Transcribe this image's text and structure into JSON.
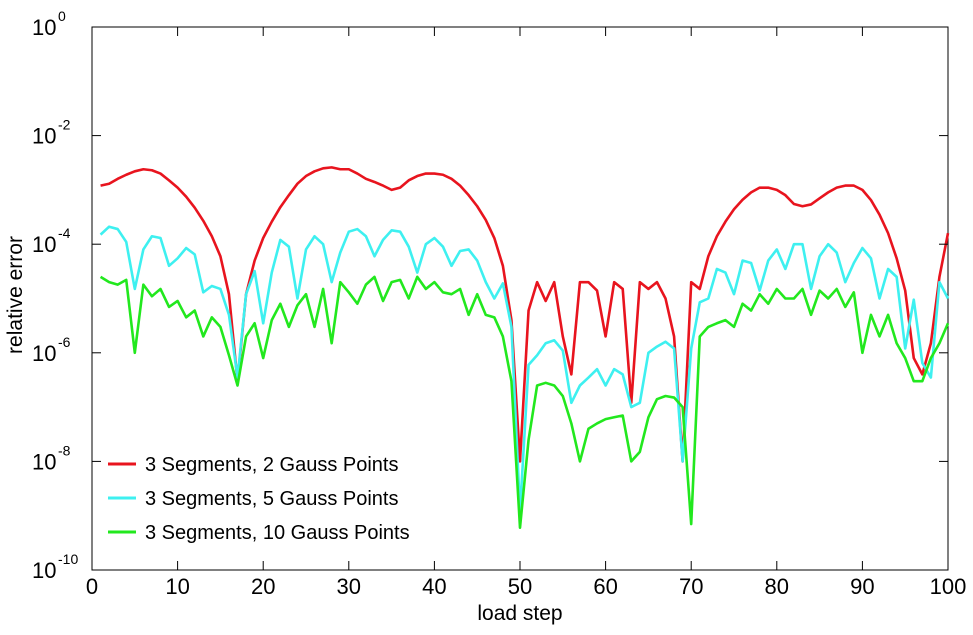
{
  "chart_data": {
    "type": "line",
    "title": "",
    "xlabel": "load step",
    "ylabel": "relative error",
    "xlim": [
      0,
      100
    ],
    "ylim": [
      1e-10,
      1
    ],
    "yscale": "log",
    "grid": false,
    "legend_position": "bottom-left",
    "x_ticks": [
      "0",
      "10",
      "20",
      "30",
      "40",
      "50",
      "60",
      "70",
      "80",
      "90",
      "100"
    ],
    "y_ticks": [
      {
        "base": "10",
        "exp": "0",
        "value": 0
      },
      {
        "base": "10",
        "exp": "-2",
        "value": -2
      },
      {
        "base": "10",
        "exp": "-4",
        "value": -4
      },
      {
        "base": "10",
        "exp": "-6",
        "value": -6
      },
      {
        "base": "10",
        "exp": "-8",
        "value": -8
      },
      {
        "base": "10",
        "exp": "-10",
        "value": -10
      }
    ],
    "x": [
      1,
      2,
      3,
      4,
      5,
      6,
      7,
      8,
      9,
      10,
      11,
      12,
      13,
      14,
      15,
      16,
      17,
      18,
      19,
      20,
      21,
      22,
      23,
      24,
      25,
      26,
      27,
      28,
      29,
      30,
      31,
      32,
      33,
      34,
      35,
      36,
      37,
      38,
      39,
      40,
      41,
      42,
      43,
      44,
      45,
      46,
      47,
      48,
      49,
      50,
      51,
      52,
      53,
      54,
      55,
      56,
      57,
      58,
      59,
      60,
      61,
      62,
      63,
      64,
      65,
      66,
      67,
      68,
      69,
      70,
      71,
      72,
      73,
      74,
      75,
      76,
      77,
      78,
      79,
      80,
      81,
      82,
      83,
      84,
      85,
      86,
      87,
      88,
      89,
      90,
      91,
      92,
      93,
      94,
      95,
      96,
      97,
      98,
      99,
      100
    ],
    "series": [
      {
        "name": "3 Segments, 2 Gauss Points",
        "color": "#e8141e",
        "values": [
          0.0012,
          0.0013,
          0.0016,
          0.0019,
          0.0022,
          0.0024,
          0.0023,
          0.002,
          0.0015,
          0.0011,
          0.00075,
          0.00047,
          0.00027,
          0.00014,
          6e-05,
          1.2e-05,
          3e-07,
          1.2e-05,
          5e-05,
          0.00013,
          0.00026,
          0.00048,
          0.0008,
          0.0013,
          0.0018,
          0.0022,
          0.0025,
          0.0026,
          0.0024,
          0.0024,
          0.002,
          0.0016,
          0.0014,
          0.0012,
          0.001,
          0.0011,
          0.0015,
          0.0018,
          0.002,
          0.002,
          0.0019,
          0.0016,
          0.0012,
          0.0008,
          0.0005,
          0.00028,
          0.00013,
          4e-05,
          4e-06,
          1e-08,
          6e-06,
          2e-05,
          9e-06,
          2e-05,
          2e-06,
          4e-07,
          2e-05,
          2e-05,
          1.4e-05,
          2e-06,
          2e-05,
          1.5e-05,
          1.2e-07,
          2e-05,
          1.5e-05,
          2e-05,
          1e-05,
          2e-06,
          1e-08,
          2e-05,
          1.5e-05,
          6e-05,
          0.00014,
          0.00026,
          0.00044,
          0.00066,
          0.0009,
          0.0011,
          0.0011,
          0.001,
          0.0008,
          0.00055,
          0.0005,
          0.00054,
          0.0007,
          0.0009,
          0.0011,
          0.0012,
          0.0012,
          0.001,
          0.00065,
          0.00035,
          0.00016,
          5.5e-05,
          1.4e-05,
          8e-07,
          4e-07,
          1.5e-06,
          2.5e-05,
          0.00016
        ]
      },
      {
        "name": "3 Segments, 5 Gauss Points",
        "color": "#3ef0f0",
        "values": [
          0.00015,
          0.00021,
          0.00019,
          0.00011,
          1.5e-05,
          8e-05,
          0.00014,
          0.00013,
          4e-05,
          5.5e-05,
          8.5e-05,
          6.5e-05,
          1.3e-05,
          1.7e-05,
          1.5e-05,
          5e-06,
          3.5e-07,
          1.2e-05,
          3.2e-05,
          3.5e-06,
          3e-05,
          0.00012,
          9e-05,
          1e-05,
          8e-05,
          0.00014,
          0.0001,
          2e-05,
          7e-05,
          0.00017,
          0.00019,
          0.00014,
          6e-05,
          0.00012,
          0.00018,
          0.00017,
          9e-05,
          3e-05,
          0.0001,
          0.00013,
          9e-05,
          4e-05,
          7.5e-05,
          8e-05,
          5e-05,
          2e-05,
          1e-05,
          1.9e-05,
          3e-06,
          1.2e-09,
          6e-07,
          9e-07,
          1.5e-06,
          1.7e-06,
          1.1e-06,
          1.2e-07,
          2.5e-07,
          3.5e-07,
          5e-07,
          2.5e-07,
          5e-07,
          4e-07,
          1e-07,
          1.2e-07,
          1e-06,
          1.3e-06,
          1.6e-06,
          1.2e-06,
          1e-08,
          1.2e-06,
          8.5e-06,
          1e-05,
          3.5e-05,
          3e-05,
          1.2e-05,
          5e-05,
          4.5e-05,
          1.4e-05,
          5e-05,
          8e-05,
          3.5e-05,
          0.0001,
          0.0001,
          1.5e-05,
          6e-05,
          0.0001,
          7e-05,
          2e-05,
          4.5e-05,
          8.5e-05,
          5.5e-05,
          1e-05,
          3.5e-05,
          2.5e-05,
          1.2e-06,
          9.5e-06,
          6.5e-07,
          3.5e-07,
          2e-05,
          1e-05
        ]
      },
      {
        "name": "3 Segments, 10 Gauss Points",
        "color": "#22e81e",
        "values": [
          2.5e-05,
          2e-05,
          1.8e-05,
          2.2e-05,
          1e-06,
          1.8e-05,
          1.1e-05,
          1.5e-05,
          7e-06,
          9e-06,
          4.5e-06,
          6e-06,
          2e-06,
          4.5e-06,
          3e-06,
          9e-07,
          2.5e-07,
          2e-06,
          3.5e-06,
          8e-07,
          4e-06,
          8e-06,
          3e-06,
          7.5e-06,
          1.2e-05,
          3e-06,
          1.5e-05,
          1.5e-06,
          2e-05,
          1.3e-05,
          8e-06,
          1.8e-05,
          2.5e-05,
          9e-06,
          2e-05,
          2.2e-05,
          1e-05,
          2.5e-05,
          1.5e-05,
          2e-05,
          1.3e-05,
          1.2e-05,
          1.5e-05,
          5e-06,
          1.2e-05,
          5e-06,
          4.5e-06,
          2e-06,
          3e-07,
          6e-10,
          2.5e-08,
          2.5e-07,
          2.8e-07,
          2.5e-07,
          1.6e-07,
          5e-08,
          1e-08,
          4e-08,
          5e-08,
          6e-08,
          6.5e-08,
          7e-08,
          1e-08,
          1.5e-08,
          6.5e-08,
          1.4e-07,
          1.6e-07,
          1.5e-07,
          1e-07,
          7e-10,
          2e-06,
          3e-06,
          3.5e-06,
          4e-06,
          3e-06,
          8e-06,
          6e-06,
          1.2e-05,
          8e-06,
          1.5e-05,
          1e-05,
          1e-05,
          1.5e-05,
          5e-06,
          1.4e-05,
          1e-05,
          1.5e-05,
          7e-06,
          1.3e-05,
          1e-06,
          5e-06,
          2e-06,
          5e-06,
          1.5e-06,
          8e-07,
          3e-07,
          3e-07,
          8e-07,
          1.5e-06,
          3.5e-06
        ]
      }
    ]
  }
}
